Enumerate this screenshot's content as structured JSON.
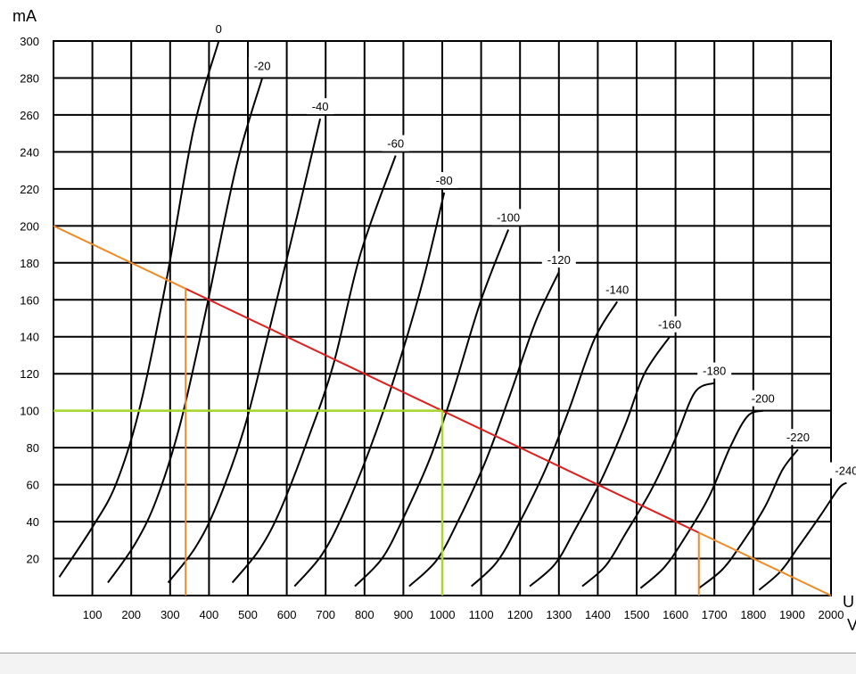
{
  "chart_data": {
    "type": "line",
    "ylabel": "mA",
    "xlabel": "U",
    "xunit": "V",
    "xlim": [
      0,
      2000
    ],
    "ylim": [
      0,
      300
    ],
    "x_ticks": [
      100,
      200,
      300,
      400,
      500,
      600,
      700,
      800,
      900,
      1000,
      1100,
      1200,
      1300,
      1400,
      1500,
      1600,
      1700,
      1800,
      1900,
      2000
    ],
    "y_ticks": [
      20,
      40,
      60,
      80,
      100,
      120,
      140,
      160,
      180,
      200,
      220,
      240,
      260,
      280,
      300
    ],
    "grid": true,
    "curves": [
      {
        "label": "0",
        "points": [
          [
            15,
            10
          ],
          [
            100,
            37
          ],
          [
            160,
            60
          ],
          [
            220,
            100
          ],
          [
            290,
            170
          ],
          [
            360,
            252
          ],
          [
            425,
            300
          ]
        ]
      },
      {
        "label": "-20",
        "points": [
          [
            140,
            7
          ],
          [
            210,
            28
          ],
          [
            265,
            52
          ],
          [
            325,
            92
          ],
          [
            390,
            152
          ],
          [
            470,
            232
          ],
          [
            537,
            280
          ]
        ]
      },
      {
        "label": "-40",
        "points": [
          [
            295,
            7
          ],
          [
            365,
            26
          ],
          [
            420,
            49
          ],
          [
            490,
            90
          ],
          [
            545,
            135
          ],
          [
            615,
            195
          ],
          [
            686,
            258
          ]
        ]
      },
      {
        "label": "-60",
        "points": [
          [
            460,
            7
          ],
          [
            530,
            25
          ],
          [
            585,
            47
          ],
          [
            655,
            85
          ],
          [
            720,
            125
          ],
          [
            790,
            185
          ],
          [
            880,
            238
          ]
        ]
      },
      {
        "label": "-80",
        "points": [
          [
            620,
            5
          ],
          [
            690,
            22
          ],
          [
            745,
            44
          ],
          [
            815,
            80
          ],
          [
            880,
            120
          ],
          [
            950,
            170
          ],
          [
            1005,
            218
          ]
        ]
      },
      {
        "label": "-100",
        "points": [
          [
            775,
            5
          ],
          [
            845,
            20
          ],
          [
            900,
            42
          ],
          [
            970,
            75
          ],
          [
            1030,
            112
          ],
          [
            1100,
            160
          ],
          [
            1170,
            198
          ]
        ]
      },
      {
        "label": "-120",
        "points": [
          [
            915,
            5
          ],
          [
            985,
            19
          ],
          [
            1040,
            40
          ],
          [
            1110,
            72
          ],
          [
            1170,
            106
          ],
          [
            1240,
            148
          ],
          [
            1300,
            175
          ]
        ]
      },
      {
        "label": "-140",
        "points": [
          [
            1075,
            5
          ],
          [
            1140,
            18
          ],
          [
            1195,
            38
          ],
          [
            1265,
            68
          ],
          [
            1325,
            100
          ],
          [
            1390,
            138
          ],
          [
            1450,
            159
          ]
        ]
      },
      {
        "label": "-160",
        "points": [
          [
            1225,
            5
          ],
          [
            1290,
            17
          ],
          [
            1340,
            35
          ],
          [
            1410,
            63
          ],
          [
            1470,
            92
          ],
          [
            1520,
            120
          ],
          [
            1585,
            140
          ]
        ]
      },
      {
        "label": "-180",
        "points": [
          [
            1360,
            5
          ],
          [
            1420,
            16
          ],
          [
            1470,
            33
          ],
          [
            1540,
            58
          ],
          [
            1600,
            85
          ],
          [
            1650,
            110
          ],
          [
            1700,
            115
          ]
        ]
      },
      {
        "label": "-200",
        "points": [
          [
            1510,
            4
          ],
          [
            1570,
            15
          ],
          [
            1620,
            30
          ],
          [
            1685,
            53
          ],
          [
            1740,
            80
          ],
          [
            1785,
            97
          ],
          [
            1825,
            100
          ]
        ]
      },
      {
        "label": "-220",
        "points": [
          [
            1660,
            4
          ],
          [
            1720,
            14
          ],
          [
            1770,
            28
          ],
          [
            1830,
            48
          ],
          [
            1875,
            68
          ],
          [
            1915,
            79
          ]
        ]
      },
      {
        "label": "-240",
        "points": [
          [
            1815,
            3
          ],
          [
            1870,
            13
          ],
          [
            1915,
            26
          ],
          [
            1975,
            44
          ],
          [
            2020,
            58
          ],
          [
            2040,
            61
          ]
        ]
      }
    ],
    "load_line": {
      "points": [
        [
          0,
          200
        ],
        [
          2000,
          0
        ]
      ],
      "color_upper": "#f08a24",
      "color_mid": "#e0201e",
      "color_lower": "#f08a24"
    },
    "operating_point": {
      "x": 1000,
      "y": 100,
      "color": "#a8d82a"
    },
    "swing_min": {
      "x": 340,
      "y": 166,
      "color": "#f08a24"
    },
    "swing_max": {
      "x": 1660,
      "y": 34,
      "color": "#f08a24"
    }
  }
}
